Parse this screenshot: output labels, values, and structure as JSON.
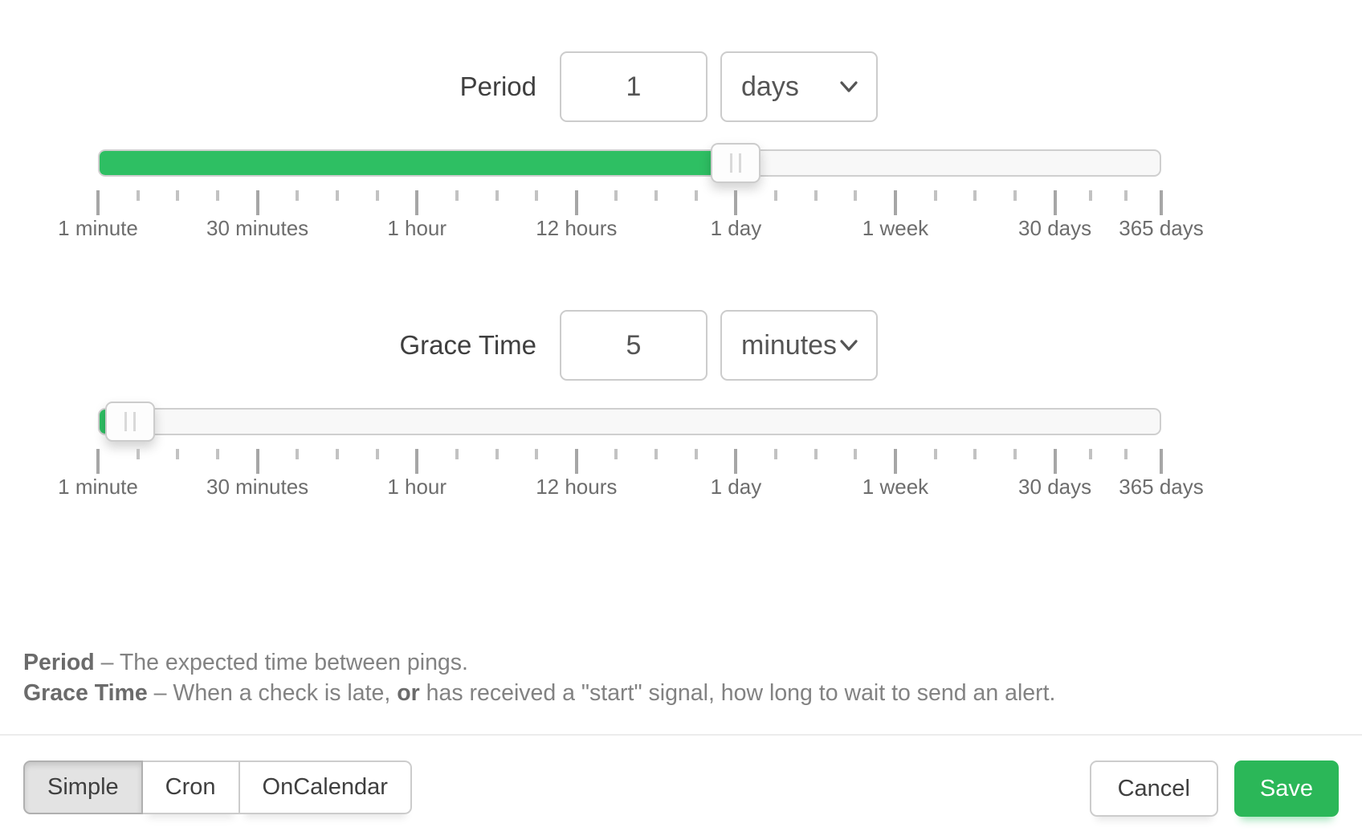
{
  "period": {
    "label": "Period",
    "value": "1",
    "unit": "days",
    "slider_percent": 60
  },
  "grace": {
    "label": "Grace Time",
    "value": "5",
    "unit": "minutes",
    "slider_percent": 3
  },
  "slider_scale": {
    "major_ticks": [
      {
        "label": "1 minute",
        "percent": 0
      },
      {
        "label": "30 minutes",
        "percent": 15
      },
      {
        "label": "1 hour",
        "percent": 30
      },
      {
        "label": "12 hours",
        "percent": 45
      },
      {
        "label": "1 day",
        "percent": 60
      },
      {
        "label": "1 week",
        "percent": 75
      },
      {
        "label": "30 days",
        "percent": 90
      },
      {
        "label": "365 days",
        "percent": 100
      }
    ],
    "minor_ticks_percent": [
      3.75,
      7.5,
      11.25,
      18.75,
      22.5,
      26.25,
      33.75,
      37.5,
      41.25,
      48.75,
      52.5,
      56.25,
      63.75,
      67.5,
      71.25,
      78.75,
      82.5,
      86.25,
      93.33,
      96.67
    ]
  },
  "help": {
    "line1_term": "Period",
    "line1_rest": " – The expected time between pings.",
    "line2_term": "Grace Time",
    "line2_part1": " – When a check is late, ",
    "line2_or": "or",
    "line2_part2": " has received a \"start\" signal, how long to wait to send an alert."
  },
  "footer": {
    "mode_buttons": [
      {
        "label": "Simple",
        "active": true
      },
      {
        "label": "Cron",
        "active": false
      },
      {
        "label": "OnCalendar",
        "active": false
      }
    ],
    "cancel_label": "Cancel",
    "save_label": "Save"
  },
  "colors": {
    "slider_fill_green": "#2ebf63",
    "save_green": "#2bb758",
    "border_gray": "#cccccc",
    "active_mode_bg": "#e3e3e3"
  }
}
